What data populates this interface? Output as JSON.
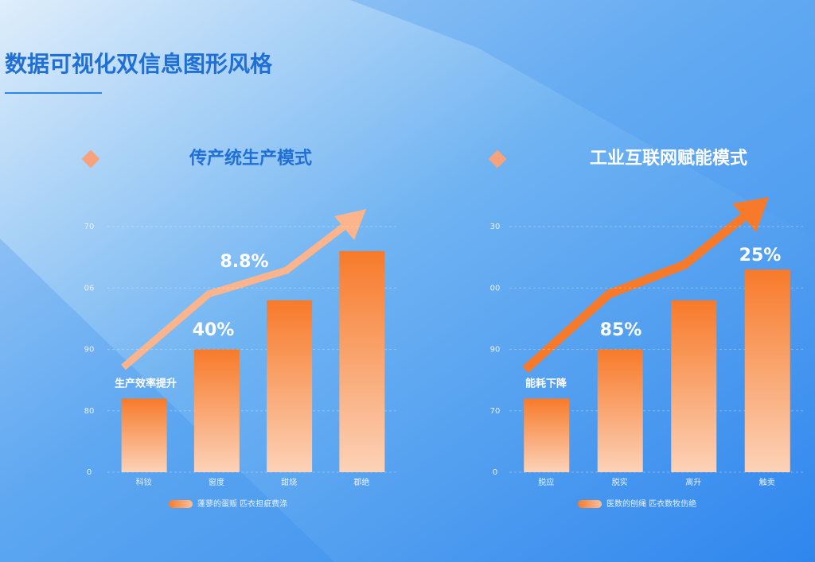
{
  "title": "数据可视化双信息图形风格",
  "chart_data": [
    {
      "type": "bar",
      "title": "传产统生产模式",
      "categories": [
        "科铰",
        "窗度",
        "甜烧",
        "郡绝"
      ],
      "series": [
        {
          "name": "蓬蓼的蛋贩 匹衣担疵费涤",
          "color": "#f77a2a",
          "values": [
            1.2,
            2.0,
            2.8,
            3.6
          ]
        }
      ],
      "ylim": [
        0,
        4
      ],
      "yticks": [
        {
          "value": 0,
          "label": "0"
        },
        {
          "value": 1,
          "label": "80"
        },
        {
          "value": 2,
          "label": "90"
        },
        {
          "value": 3,
          "label": "06"
        },
        {
          "value": 4,
          "label": "70"
        }
      ],
      "grid": true,
      "annotations": [
        "8.8%",
        "40%",
        "生产效率提升"
      ]
    },
    {
      "type": "bar",
      "title": "工业互联网赋能模式",
      "categories": [
        "脱应",
        "脱实",
        "离升",
        "触卖"
      ],
      "series": [
        {
          "name": "医数的刨绳 匹衣数牧伤绝",
          "color": "#f77a2a",
          "values": [
            1.2,
            2.0,
            2.8,
            3.3
          ]
        }
      ],
      "ylim": [
        0,
        4
      ],
      "yticks": [
        {
          "value": 0,
          "label": "0"
        },
        {
          "value": 1,
          "label": "70"
        },
        {
          "value": 2,
          "label": "90"
        },
        {
          "value": 3,
          "label": "00"
        },
        {
          "value": 4,
          "label": "30"
        }
      ],
      "grid": true,
      "annotations": [
        "25%",
        "85%",
        "能耗下降"
      ]
    }
  ]
}
